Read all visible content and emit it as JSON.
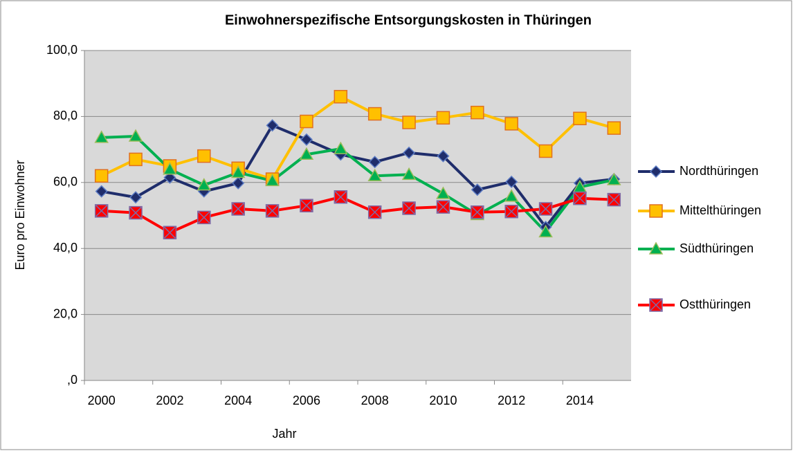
{
  "chart_data": {
    "type": "line",
    "title": "Einwohnerspezifische Entsorgungskosten in Thüringen",
    "x_label": "Jahr",
    "y_label": "Euro pro Einwohner",
    "categories": [
      "2000",
      null,
      "2002",
      null,
      "2004",
      null,
      "2006",
      null,
      "2008",
      null,
      "2010",
      null,
      "2012",
      null,
      "2014",
      null
    ],
    "ylim": [
      0,
      100
    ],
    "yticks": [
      {
        "value": 0,
        "label": ",0"
      },
      {
        "value": 20,
        "label": "20,0"
      },
      {
        "value": 40,
        "label": "40,0"
      },
      {
        "value": 60,
        "label": "60,0"
      },
      {
        "value": 80,
        "label": "80,0"
      },
      {
        "value": 100,
        "label": "100,0"
      }
    ],
    "grid": true,
    "legend": "right",
    "series": [
      {
        "name": "Nordthüringen",
        "color": "#1f2d6b",
        "marker": "diamond",
        "values": [
          57.3,
          55.5,
          61.5,
          57.3,
          59.8,
          77.3,
          73,
          68.5,
          66.2,
          69,
          68,
          57.8,
          60.2,
          46.5,
          59.8,
          61
        ]
      },
      {
        "name": "Mittelthüringen",
        "color": "#ffc000",
        "marker": "square",
        "values": [
          62,
          67,
          65,
          68,
          64.3,
          61,
          78.5,
          86,
          80.8,
          78.2,
          79.6,
          81.2,
          77.8,
          69.5,
          79.4,
          76.5
        ]
      },
      {
        "name": "Südthüringen",
        "color": "#00b050",
        "marker": "triangle",
        "values": [
          73.6,
          74,
          64,
          59.2,
          63,
          60.5,
          68.5,
          70.2,
          62,
          62.4,
          56.6,
          50.2,
          55.8,
          45,
          58.6,
          60.8
        ]
      },
      {
        "name": "Ostthüringen",
        "color": "#ff0000",
        "marker": "xsquare",
        "values": [
          51.4,
          50.8,
          44.8,
          49.4,
          52,
          51.4,
          53,
          55.6,
          51,
          52.2,
          52.6,
          51,
          51.2,
          52,
          55.2,
          54.8
        ]
      }
    ]
  }
}
